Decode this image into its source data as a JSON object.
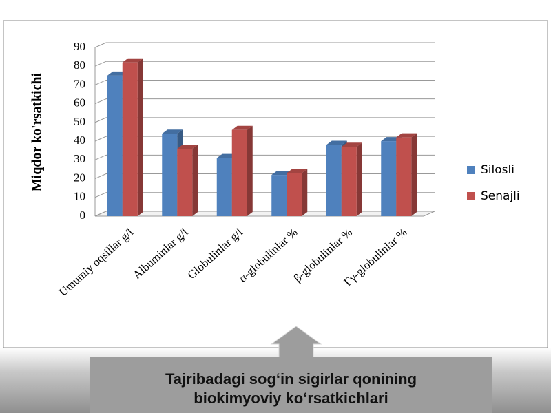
{
  "chart_data": {
    "type": "bar3d",
    "ylabel": "Miqdor ko'rsatkichi",
    "categories": [
      "Umumiy oqsillar g/l",
      "Albuminlar g/l",
      "Globulinlar g/l",
      "α-globulinlar %",
      "β-globulinlar %",
      "Γγ-globulinlar %"
    ],
    "series": [
      {
        "name": "Silosli",
        "color": "#4f81bd",
        "values": [
          75,
          44,
          31,
          22,
          38,
          40
        ]
      },
      {
        "name": "Senajli",
        "color": "#c0504d",
        "values": [
          82,
          36,
          46,
          23,
          37,
          42
        ]
      }
    ],
    "ylim": [
      0,
      90
    ],
    "yticks": [
      0,
      10,
      20,
      30,
      40,
      50,
      60,
      70,
      80,
      90
    ],
    "grid": true,
    "legend": "right"
  },
  "caption": "Tajribadagi sog‘in sigirlar qonining biokimyoviy ko‘rsatkichlari"
}
